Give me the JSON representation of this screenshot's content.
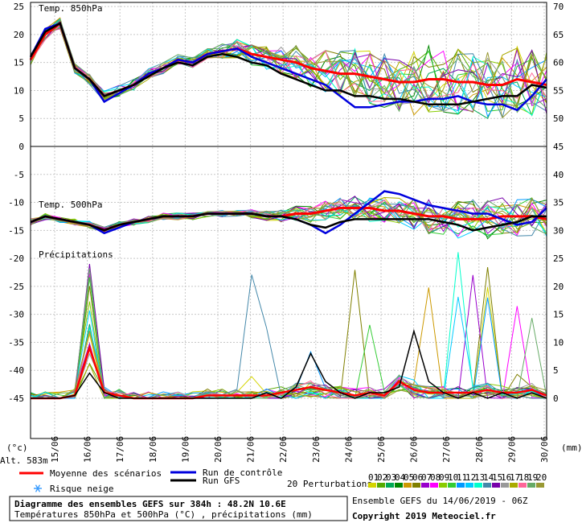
{
  "chart_data": {
    "type": "line",
    "panels": [
      "Temp. 850hPa",
      "Temp. 500hPa",
      "Précipitations"
    ],
    "x_dates": [
      "15/06",
      "16/06",
      "17/06",
      "18/06",
      "19/06",
      "20/06",
      "21/06",
      "22/06",
      "23/06",
      "24/06",
      "25/06",
      "26/06",
      "27/06",
      "28/06",
      "29/06",
      "30/06"
    ],
    "left_axis": {
      "unit_label": "(°c)",
      "ticks": [
        25,
        20,
        15,
        10,
        5,
        0,
        -5,
        -10,
        -15,
        -20,
        -25,
        -30,
        -35,
        -40,
        -45
      ],
      "ylim": [
        -45,
        25
      ]
    },
    "right_axis": {
      "unit_label": "(mm)",
      "ticks": [
        70,
        65,
        60,
        55,
        50,
        45,
        40,
        35,
        30,
        25,
        20,
        15,
        10,
        5,
        0
      ],
      "ylim": [
        0,
        70
      ]
    },
    "series": [
      {
        "name": "Moyenne des scénarios",
        "color": "#ff0000",
        "t850": [
          15.5,
          20,
          22,
          14,
          12,
          9,
          10,
          11,
          13,
          14,
          15.5,
          15,
          16.5,
          17,
          17.5,
          16.5,
          16,
          15.5,
          15,
          14,
          13.5,
          13,
          13,
          12.5,
          12,
          11.5,
          11.5,
          12,
          12,
          11.5,
          11.5,
          11,
          11,
          12,
          11.5,
          11
        ],
        "t500": [
          -13.5,
          -12.5,
          -13,
          -13.5,
          -14,
          -15,
          -14,
          -13.5,
          -13,
          -12.5,
          -12.5,
          -12.5,
          -12,
          -12,
          -12,
          -12,
          -12.5,
          -12.5,
          -12,
          -12,
          -11.5,
          -11,
          -11,
          -11,
          -11.5,
          -11.5,
          -12,
          -12.5,
          -12.5,
          -13,
          -13,
          -13,
          -12.5,
          -12.5,
          -12.5,
          -13
        ],
        "precip": [
          0,
          0,
          0,
          0.5,
          9,
          1,
          0.5,
          0,
          0,
          0,
          0,
          0,
          0.5,
          0.5,
          0.5,
          0.5,
          0.5,
          1,
          1.5,
          2,
          1.5,
          1,
          0.5,
          1,
          0.5,
          3,
          1.5,
          1,
          1,
          1,
          1,
          1.5,
          1,
          1,
          1.5,
          0.5
        ]
      },
      {
        "name": "Run de contrôle",
        "color": "#0000dd",
        "t850": [
          16,
          21,
          22,
          14,
          12,
          8,
          9.5,
          11,
          13,
          14,
          15.5,
          15,
          16.5,
          17,
          17.5,
          16,
          15,
          14,
          13,
          12,
          11,
          9,
          7,
          7,
          7.5,
          8,
          8,
          8.5,
          8.5,
          9,
          8,
          7.5,
          7.5,
          6.5,
          9,
          12
        ],
        "t500": [
          -13.5,
          -12.5,
          -13,
          -13.5,
          -14,
          -15.5,
          -14.5,
          -13.5,
          -13,
          -12.5,
          -12.5,
          -12.5,
          -12,
          -12,
          -12,
          -12,
          -12.5,
          -12.5,
          -13,
          -14,
          -15.5,
          -14,
          -12,
          -10,
          -8,
          -8.5,
          -9.5,
          -10.5,
          -11,
          -11.5,
          -12,
          -12,
          -13,
          -14,
          -13.5,
          -11
        ]
      },
      {
        "name": "Run GFS",
        "color": "#000000",
        "t850": [
          16,
          20.5,
          22,
          14,
          12,
          9,
          10,
          11,
          12.5,
          14,
          15,
          14.5,
          16,
          16.5,
          16,
          15,
          14.5,
          13,
          12,
          11,
          10,
          10,
          9,
          9,
          8.5,
          8.5,
          8,
          7.5,
          7.5,
          7.5,
          8,
          8.5,
          9,
          9,
          11,
          10.5
        ],
        "t500": [
          -13.5,
          -12.5,
          -13,
          -13.5,
          -14,
          -15,
          -14,
          -13.5,
          -13,
          -12.5,
          -12.5,
          -12.5,
          -12,
          -12,
          -12,
          -12,
          -12.5,
          -12.5,
          -13,
          -14,
          -14.5,
          -13.5,
          -13,
          -13,
          -13,
          -13,
          -13,
          -13,
          -13.5,
          -14,
          -15,
          -14.5,
          -14,
          -13.5,
          -12.5,
          -12.5
        ],
        "precip": [
          0,
          0,
          0,
          0.5,
          4.5,
          1,
          0,
          0,
          0,
          0,
          0,
          0,
          0,
          0,
          0,
          0,
          1,
          0,
          2,
          8,
          3,
          1,
          0,
          1,
          1,
          2,
          12,
          3,
          1,
          0,
          1,
          0,
          1,
          0,
          1,
          0
        ]
      }
    ],
    "perturbation_count": 20,
    "legend": {
      "mean": "Moyenne des scénarios",
      "control": "Run de contrôle",
      "gfs": "Run GFS",
      "snow": "Risque neige",
      "perturbations": "20 Perturbations",
      "perturbation_numbers": [
        "01",
        "02",
        "03",
        "04",
        "05",
        "06",
        "07",
        "08",
        "09",
        "10",
        "11",
        "12",
        "13",
        "14",
        "15",
        "16",
        "17",
        "18",
        "19",
        "20"
      ],
      "perturbation_colors": [
        "#d4d400",
        "#55aa00",
        "#00aa55",
        "#008800",
        "#cc9900",
        "#808000",
        "#9900cc",
        "#ff00ff",
        "#88cc00",
        "#33cc33",
        "#0099ff",
        "#00ccff",
        "#00ffcc",
        "#4488aa",
        "#7700aa",
        "#999999",
        "#aaaa00",
        "#ff6699",
        "#66aa66",
        "#999933"
      ]
    },
    "altitude": "Alt. 583m",
    "title": "Diagramme des ensembles GEFS sur 384h : 48.2N 10.6E",
    "subtitle": "Températures 850hPa et 500hPa (°C) , précipitations (mm)",
    "run": "Ensemble GEFS du 14/06/2019 - 06Z",
    "copyright": "Copyright 2019 Meteociel.fr"
  }
}
